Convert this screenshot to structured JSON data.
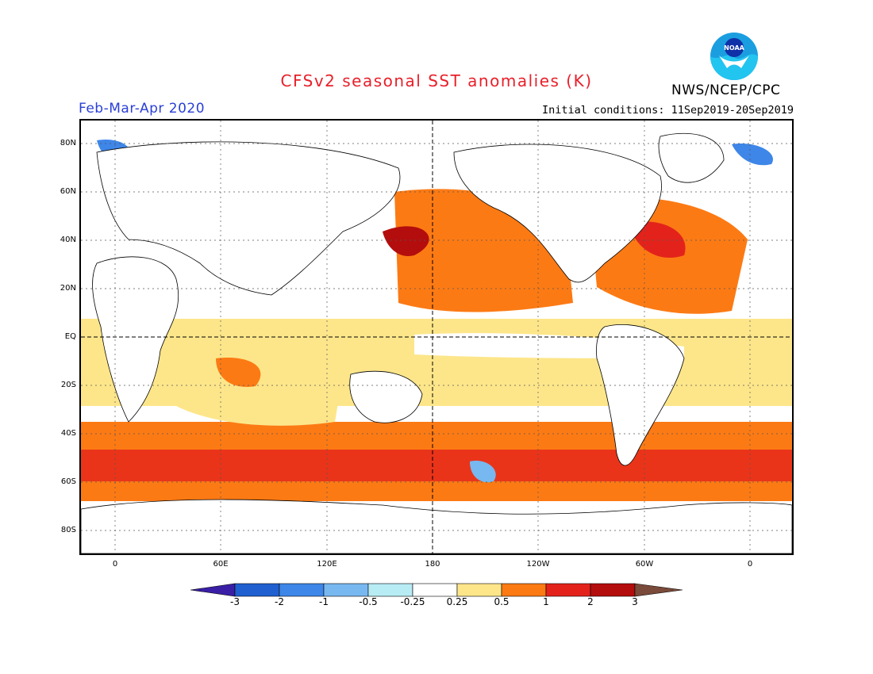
{
  "header": {
    "title": "CFSv2 seasonal SST anomalies (K)",
    "period": "Feb-Mar-Apr 2020",
    "init": "Initial conditions: 11Sep2019-20Sep2019",
    "org": "NWS/NCEP/CPC",
    "logo_text": "NOAA"
  },
  "map": {
    "lat_labels": [
      "80N",
      "60N",
      "40N",
      "20N",
      "EQ",
      "20S",
      "40S",
      "60S",
      "80S"
    ],
    "lon_labels": [
      "0",
      "60E",
      "120E",
      "180",
      "120W",
      "60W",
      "0"
    ],
    "lon_range": [
      -20,
      380
    ],
    "lat_range": [
      -90,
      90
    ]
  },
  "colorbar": {
    "labels": [
      "-3",
      "-2",
      "-1",
      "-0.5",
      "-0.25",
      "0.25",
      "0.5",
      "1",
      "2",
      "3"
    ],
    "colors": [
      "#3a1fa6",
      "#1f5fd0",
      "#3e86e8",
      "#78b8f0",
      "#b8ecf4",
      "#ffffff",
      "#fde68a",
      "#fc7a14",
      "#e3231b",
      "#b40d0d",
      "#7a4a3a"
    ]
  }
}
